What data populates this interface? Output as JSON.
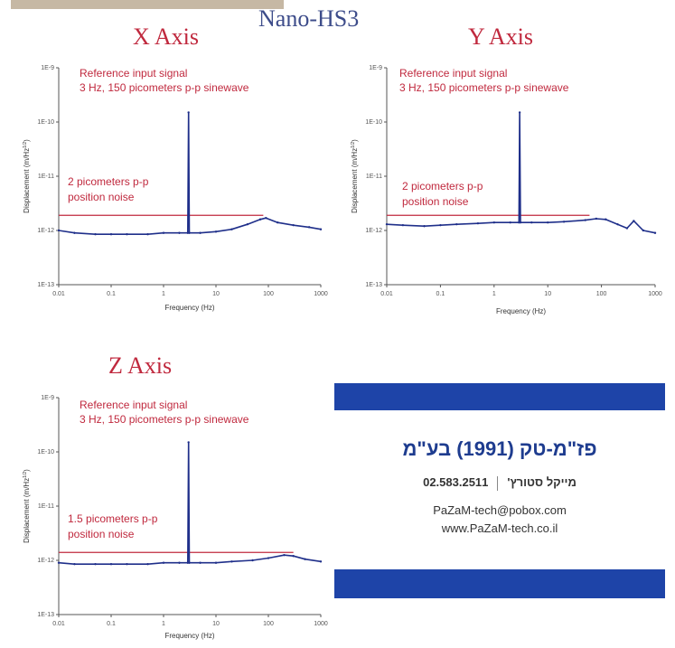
{
  "page": {
    "title": "Nano-HS3"
  },
  "chart_data": [
    {
      "type": "line",
      "title": "X Axis",
      "xlabel": "Frequency (Hz)",
      "ylabel": "Displacement (m/Hz",
      "ylabel_sup": "1/2",
      "xscale": "log",
      "yscale": "log",
      "xlim": [
        0.01,
        1000
      ],
      "ylim": [
        1e-13,
        1e-09
      ],
      "xticks": [
        "0.01",
        "0.1",
        "1",
        "10",
        "100",
        "1000"
      ],
      "yticks": [
        "1E-13",
        "1E-12",
        "1E-11",
        "1E-10",
        "1E-9"
      ],
      "series": [
        {
          "x": [
            0.01,
            0.02,
            0.05,
            0.1,
            0.2,
            0.5,
            1,
            2,
            2.9,
            3,
            3.1,
            5,
            10,
            20,
            40,
            70,
            90,
            150,
            300,
            600,
            1000
          ],
          "y": [
            1e-12,
            9e-13,
            8.5e-13,
            8.5e-13,
            8.5e-13,
            8.5e-13,
            9e-13,
            9e-13,
            9e-13,
            1.5e-10,
            9e-13,
            9e-13,
            9.5e-13,
            1.05e-12,
            1.3e-12,
            1.6e-12,
            1.7e-12,
            1.4e-12,
            1.25e-12,
            1.15e-12,
            1.05e-12
          ]
        }
      ],
      "noise_line": {
        "value": 1.9e-12,
        "x_end": 80
      },
      "annotations": [
        {
          "lines": [
            "Reference input signal",
            "3 Hz, 150 picometers p-p sinewave"
          ]
        },
        {
          "lines": [
            "2 picometers p-p",
            "position noise"
          ]
        }
      ]
    },
    {
      "type": "line",
      "title": "Y Axis",
      "xlabel": "Frequency (Hz)",
      "ylabel": "Displacement (m/Hz",
      "ylabel_sup": "1/2",
      "xscale": "log",
      "yscale": "log",
      "xlim": [
        0.01,
        1000
      ],
      "ylim": [
        1e-13,
        1e-09
      ],
      "xticks": [
        "0.01",
        "0.1",
        "1",
        "10",
        "100",
        "1000"
      ],
      "yticks": [
        "1E-13",
        "1E-12",
        "1E-11",
        "1E-10",
        "1E-9"
      ],
      "series": [
        {
          "x": [
            0.01,
            0.02,
            0.05,
            0.1,
            0.2,
            0.5,
            1,
            2,
            2.9,
            3,
            3.1,
            5,
            10,
            20,
            50,
            80,
            120,
            200,
            300,
            400,
            600,
            1000
          ],
          "y": [
            1.3e-12,
            1.25e-12,
            1.2e-12,
            1.25e-12,
            1.3e-12,
            1.35e-12,
            1.4e-12,
            1.4e-12,
            1.4e-12,
            1.5e-10,
            1.4e-12,
            1.4e-12,
            1.4e-12,
            1.45e-12,
            1.55e-12,
            1.65e-12,
            1.6e-12,
            1.3e-12,
            1.1e-12,
            1.5e-12,
            1e-12,
            9e-13
          ]
        }
      ],
      "noise_line": {
        "value": 1.9e-12,
        "x_end": 60
      },
      "annotations": [
        {
          "lines": [
            "Reference input signal",
            "3 Hz, 150 picometers p-p sinewave"
          ]
        },
        {
          "lines": [
            "2 picometers p-p",
            "position noise"
          ]
        }
      ]
    },
    {
      "type": "line",
      "title": "Z Axis",
      "xlabel": "Frequency (Hz)",
      "ylabel": "Displacement (m/Hz",
      "ylabel_sup": "1/2",
      "xscale": "log",
      "yscale": "log",
      "xlim": [
        0.01,
        1000
      ],
      "ylim": [
        1e-13,
        1e-09
      ],
      "xticks": [
        "0.01",
        "0.1",
        "1",
        "10",
        "100",
        "1000"
      ],
      "yticks": [
        "1E-13",
        "1E-12",
        "1E-11",
        "1E-10",
        "1E-9"
      ],
      "series": [
        {
          "x": [
            0.01,
            0.02,
            0.05,
            0.1,
            0.2,
            0.5,
            1,
            2,
            2.9,
            3,
            3.1,
            5,
            10,
            20,
            50,
            100,
            200,
            300,
            500,
            1000
          ],
          "y": [
            9e-13,
            8.5e-13,
            8.5e-13,
            8.5e-13,
            8.5e-13,
            8.5e-13,
            9e-13,
            9e-13,
            9e-13,
            1.5e-10,
            9e-13,
            9e-13,
            9e-13,
            9.5e-13,
            1e-12,
            1.1e-12,
            1.25e-12,
            1.2e-12,
            1.05e-12,
            9.5e-13
          ]
        }
      ],
      "noise_line": {
        "value": 1.4e-12,
        "x_end": 300
      },
      "annotations": [
        {
          "lines": [
            "Reference input signal",
            "3 Hz, 150 picometers p-p sinewave"
          ]
        },
        {
          "lines": [
            "1.5 picometers p-p",
            "position noise"
          ]
        }
      ]
    }
  ],
  "card": {
    "company": "פז\"מ-טק (1991) בע\"מ",
    "phone": "02.583.2511",
    "contact": "מייקל סטורץ'",
    "email": "PaZaM-tech@pobox.com",
    "website": "www.PaZaM-tech.co.il"
  },
  "colors": {
    "data": "#1f2f8a",
    "annotation": "#c0293e",
    "title_navy": "#3d4c8a",
    "card_band": "#1e44a8",
    "top_band": "#c6b8a4"
  }
}
